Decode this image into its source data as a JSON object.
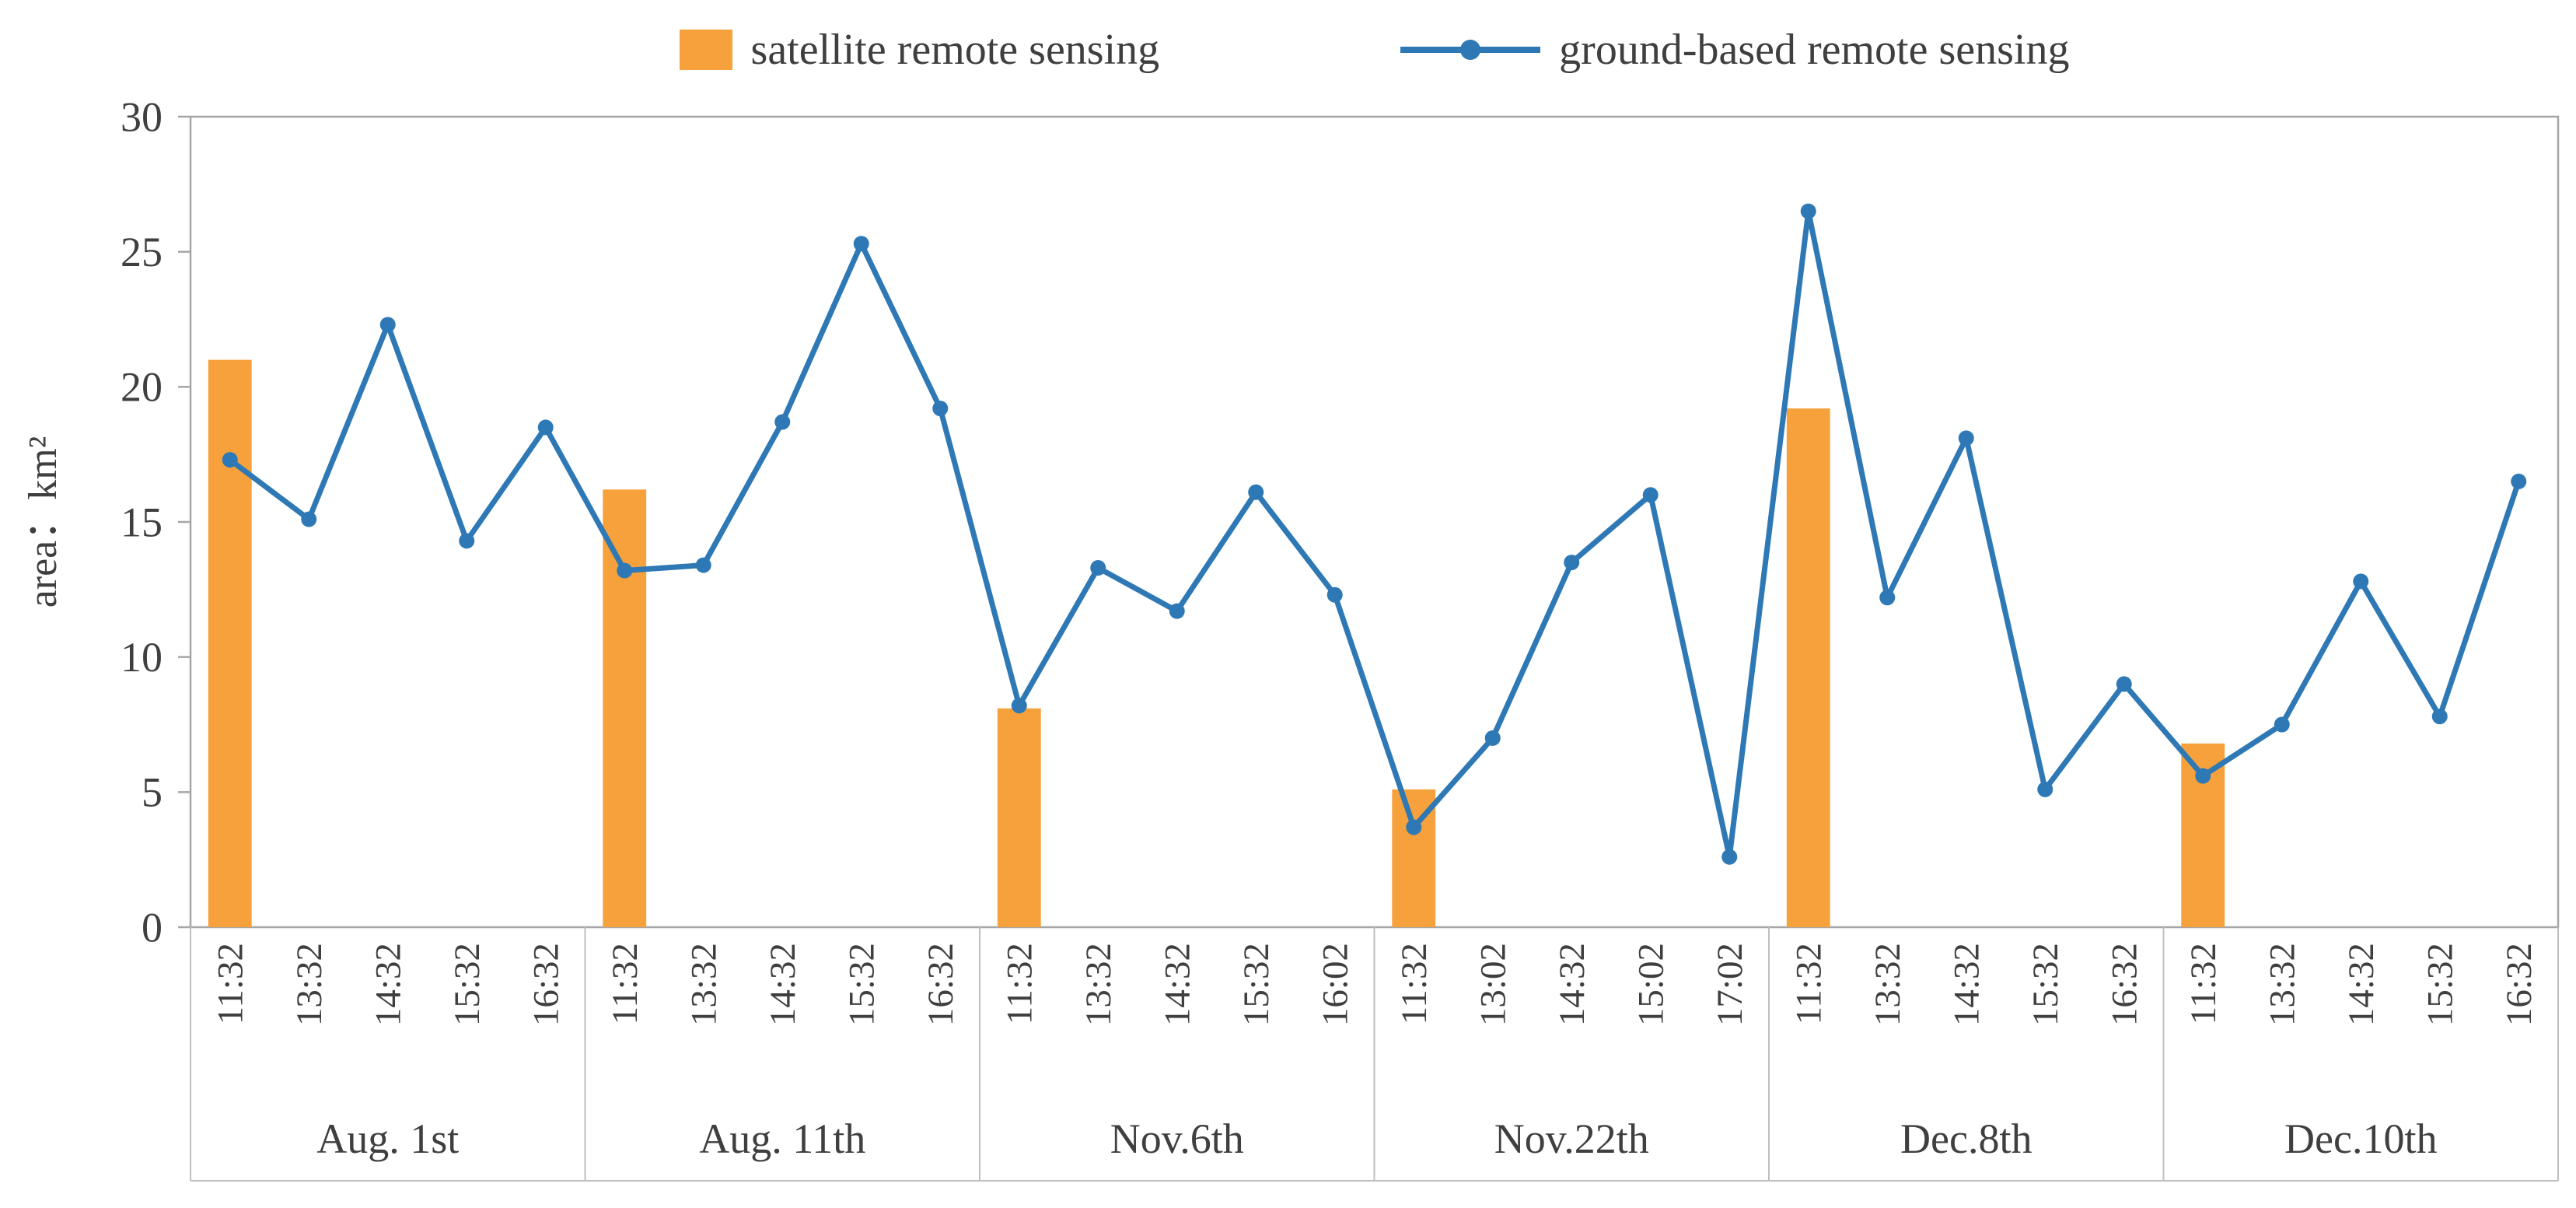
{
  "chart_data": {
    "type": "combo-bar-line",
    "title": "",
    "ylabel": "area：km²",
    "ylim": [
      0,
      30
    ],
    "yticks": [
      0,
      5,
      10,
      15,
      20,
      25,
      30
    ],
    "grid": false,
    "legend_position": "top-center",
    "colors": {
      "bar": "#F6A13B",
      "line": "#2E79B5",
      "axis": "#A6A6A6",
      "separator": "#BFBFBF",
      "text": "#3F3F3F"
    },
    "legend": [
      {
        "label": "satellite remote sensing",
        "type": "bar",
        "color": "#F6A13B"
      },
      {
        "label": "ground-based remote sensing",
        "type": "line",
        "color": "#2E79B5"
      }
    ],
    "groups": [
      {
        "label": "Aug. 1st",
        "times": [
          "11:32",
          "13:32",
          "14:32",
          "15:32",
          "16:32"
        ]
      },
      {
        "label": "Aug. 11th",
        "times": [
          "11:32",
          "13:32",
          "14:32",
          "15:32",
          "16:32"
        ]
      },
      {
        "label": "Nov.6th",
        "times": [
          "11:32",
          "13:32",
          "14:32",
          "15:32",
          "16:02"
        ]
      },
      {
        "label": "Nov.22th",
        "times": [
          "11:32",
          "13:02",
          "14:32",
          "15:02",
          "17:02"
        ]
      },
      {
        "label": "Dec.8th",
        "times": [
          "11:32",
          "13:32",
          "14:32",
          "15:32",
          "16:32"
        ]
      },
      {
        "label": "Dec.10th",
        "times": [
          "11:32",
          "13:32",
          "14:32",
          "15:32",
          "16:32"
        ]
      }
    ],
    "series": [
      {
        "name": "satellite remote sensing",
        "type": "bar",
        "color": "#F6A13B",
        "values": [
          21.0,
          null,
          null,
          null,
          null,
          16.2,
          null,
          null,
          null,
          null,
          8.1,
          null,
          null,
          null,
          null,
          5.1,
          null,
          null,
          null,
          null,
          19.2,
          null,
          null,
          null,
          null,
          6.8,
          null,
          null,
          null,
          null
        ]
      },
      {
        "name": "ground-based remote sensing",
        "type": "line",
        "color": "#2E79B5",
        "values": [
          17.3,
          15.1,
          22.3,
          14.3,
          18.5,
          13.2,
          13.4,
          18.7,
          25.3,
          19.2,
          8.2,
          13.3,
          11.7,
          16.1,
          12.3,
          3.7,
          7.0,
          13.5,
          16.0,
          2.6,
          26.5,
          12.2,
          18.1,
          5.1,
          9.0,
          5.6,
          7.5,
          12.8,
          7.8,
          16.5
        ]
      }
    ]
  }
}
